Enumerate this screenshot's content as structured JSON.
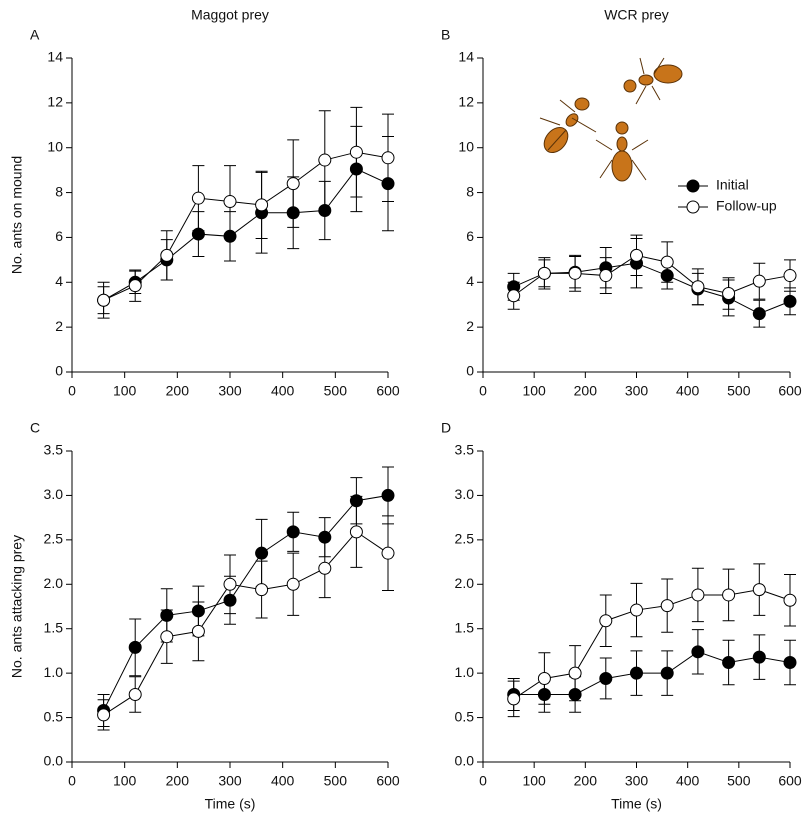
{
  "chart_data": [
    {
      "type": "line",
      "label": "A",
      "title": "Maggot prey",
      "ylabel": "No. ants on mound",
      "x": [
        60,
        120,
        180,
        240,
        300,
        360,
        420,
        480,
        540,
        600
      ],
      "series": [
        {
          "marker_fill": "#000000",
          "color": "#000000",
          "values": [
            3.2,
            4.0,
            5.0,
            6.15,
            6.05,
            7.1,
            7.1,
            7.2,
            9.05,
            8.4
          ],
          "errors": [
            0.6,
            0.5,
            0.9,
            1.0,
            1.1,
            1.8,
            1.6,
            1.3,
            1.9,
            2.1
          ]
        },
        {
          "marker_fill": "#ffffff",
          "color": "#000000",
          "values": [
            3.2,
            3.85,
            5.2,
            7.75,
            7.6,
            7.45,
            8.4,
            9.45,
            9.8,
            9.55
          ],
          "errors": [
            0.8,
            0.7,
            1.1,
            1.45,
            1.6,
            1.5,
            1.95,
            2.2,
            2.0,
            1.95
          ]
        }
      ],
      "xlim": [
        0,
        600
      ],
      "xticks": [
        0,
        100,
        200,
        300,
        400,
        500,
        600
      ],
      "ylim": [
        0,
        14
      ],
      "yticks": [
        0,
        2,
        4,
        6,
        8,
        10,
        12,
        14
      ]
    },
    {
      "type": "line",
      "label": "B",
      "title": "WCR prey",
      "legend": "upper right",
      "x": [
        60,
        120,
        180,
        240,
        300,
        360,
        420,
        480,
        540,
        600
      ],
      "series": [
        {
          "name": "Initial",
          "marker_fill": "#000000",
          "color": "#000000",
          "values": [
            3.8,
            4.4,
            4.45,
            4.65,
            4.85,
            4.3,
            3.7,
            3.3,
            2.6,
            3.15
          ],
          "errors": [
            0.6,
            0.7,
            0.7,
            0.9,
            1.1,
            0.6,
            0.7,
            0.8,
            0.6,
            0.6
          ]
        },
        {
          "name": "Follow-up",
          "marker_fill": "#ffffff",
          "color": "#000000",
          "values": [
            3.4,
            4.4,
            4.4,
            4.3,
            5.2,
            4.9,
            3.8,
            3.5,
            4.05,
            4.3
          ],
          "errors": [
            0.6,
            0.6,
            0.8,
            0.8,
            0.9,
            0.9,
            0.8,
            0.7,
            0.8,
            0.7
          ]
        }
      ],
      "xlim": [
        0,
        600
      ],
      "xticks": [
        0,
        100,
        200,
        300,
        400,
        500,
        600
      ],
      "ylim": [
        0,
        14
      ],
      "yticks": [
        0,
        2,
        4,
        6,
        8,
        10,
        12,
        14
      ]
    },
    {
      "type": "line",
      "label": "C",
      "ylabel": "No. ants attacking prey",
      "xlabel": "Time (s)",
      "x": [
        60,
        120,
        180,
        240,
        300,
        360,
        420,
        480,
        540,
        600
      ],
      "series": [
        {
          "marker_fill": "#000000",
          "color": "#000000",
          "values": [
            0.58,
            1.29,
            1.65,
            1.7,
            1.82,
            2.35,
            2.59,
            2.53,
            2.94,
            3.0
          ],
          "errors": [
            0.18,
            0.32,
            0.3,
            0.28,
            0.27,
            0.38,
            0.22,
            0.22,
            0.26,
            0.32
          ]
        },
        {
          "marker_fill": "#ffffff",
          "color": "#000000",
          "values": [
            0.53,
            0.76,
            1.41,
            1.47,
            2.0,
            1.94,
            2.0,
            2.18,
            2.59,
            2.35
          ],
          "errors": [
            0.17,
            0.2,
            0.3,
            0.33,
            0.33,
            0.32,
            0.35,
            0.33,
            0.4,
            0.42
          ]
        }
      ],
      "xlim": [
        0,
        600
      ],
      "xticks": [
        0,
        100,
        200,
        300,
        400,
        500,
        600
      ],
      "ylim": [
        0,
        3.5
      ],
      "yticks": [
        {
          "value": 0,
          "label": "0.0"
        },
        0.5,
        {
          "value": 1,
          "label": "1.0"
        },
        1.5,
        {
          "value": 2,
          "label": "2.0"
        },
        2.5,
        {
          "value": 3,
          "label": "3.0"
        },
        3.5
      ]
    },
    {
      "type": "line",
      "label": "D",
      "xlabel": "Time (s)",
      "x": [
        60,
        120,
        180,
        240,
        300,
        360,
        420,
        480,
        540,
        600
      ],
      "series": [
        {
          "marker_fill": "#000000",
          "color": "#000000",
          "values": [
            0.76,
            0.76,
            0.76,
            0.94,
            1.0,
            1.0,
            1.24,
            1.12,
            1.18,
            1.12
          ],
          "errors": [
            0.18,
            0.2,
            0.2,
            0.23,
            0.25,
            0.25,
            0.25,
            0.25,
            0.25,
            0.25
          ]
        },
        {
          "marker_fill": "#ffffff",
          "color": "#000000",
          "values": [
            0.71,
            0.94,
            1.0,
            1.59,
            1.71,
            1.76,
            1.88,
            1.88,
            1.94,
            1.82
          ],
          "errors": [
            0.2,
            0.29,
            0.31,
            0.29,
            0.3,
            0.3,
            0.3,
            0.29,
            0.29,
            0.29
          ]
        }
      ],
      "xlim": [
        0,
        600
      ],
      "xticks": [
        0,
        100,
        200,
        300,
        400,
        500,
        600
      ],
      "ylim": [
        0,
        3.5
      ],
      "yticks": [
        {
          "value": 0,
          "label": "0.0"
        },
        0.5,
        {
          "value": 1,
          "label": "1.0"
        },
        1.5,
        {
          "value": 2,
          "label": "2.0"
        },
        2.5,
        {
          "value": 3,
          "label": "3.0"
        },
        3.5
      ]
    }
  ]
}
